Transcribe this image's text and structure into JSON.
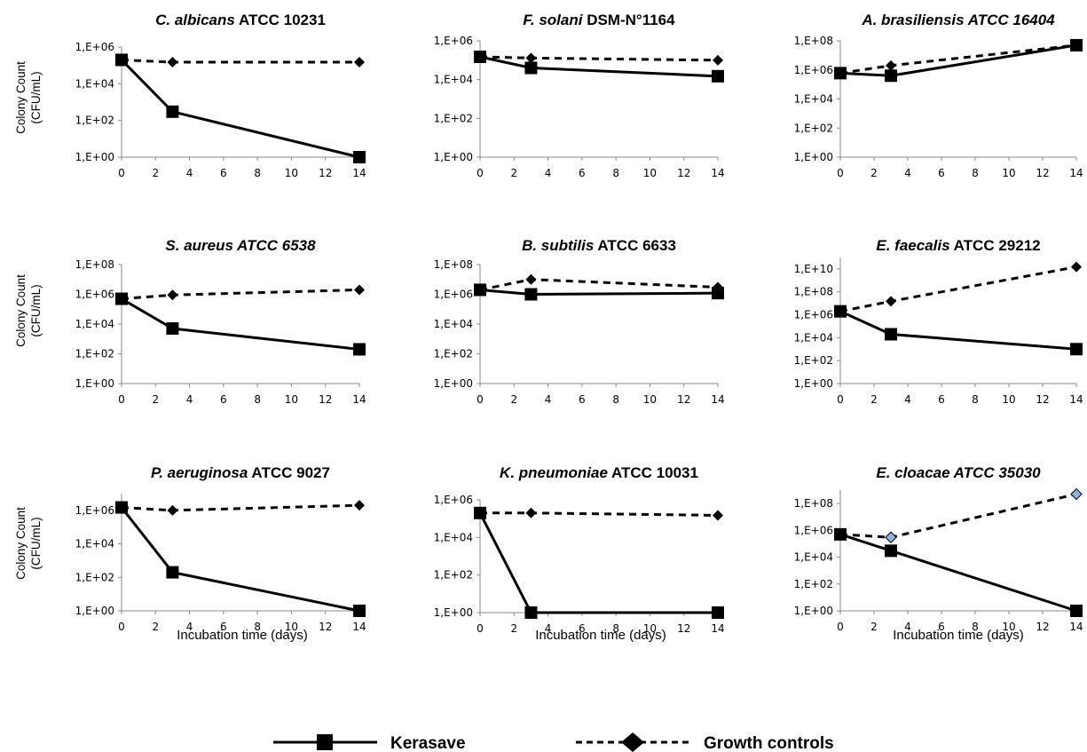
{
  "legend": {
    "kerasave_label": "Kerasave",
    "controls_label": "Growth controls"
  },
  "axis_labels": {
    "y_line1": "Colony Count",
    "y_line2": "(CFU/mL)",
    "x": "Incubation time (days)"
  },
  "colors": {
    "line": "#000000",
    "highlight_marker": "#8db3e2"
  },
  "chart_data": [
    {
      "type": "line",
      "title_species": "C. albicans",
      "title_strain": "ATCC 10231",
      "strain_italic": false,
      "x": [
        0,
        3,
        14
      ],
      "xticks": [
        "0",
        "2",
        "4",
        "6",
        "8",
        "10",
        "12",
        "14"
      ],
      "yticks": [
        "1,E+00",
        "1,E+02",
        "1,E+04",
        "1,E+06"
      ],
      "yscale": "log",
      "ylim_exp": [
        0,
        6
      ],
      "xlim": [
        0,
        14
      ],
      "series": [
        {
          "name": "Kerasave",
          "values": [
            200000,
            300,
            1
          ]
        },
        {
          "name": "Growth controls",
          "values": [
            200000,
            150000,
            150000
          ]
        }
      ]
    },
    {
      "type": "line",
      "title_species": "F. solani",
      "title_strain": "DSM-N°1164",
      "strain_italic": false,
      "x": [
        0,
        3,
        14
      ],
      "xticks": [
        "0",
        "2",
        "4",
        "6",
        "8",
        "10",
        "12",
        "14"
      ],
      "yticks": [
        "1,E+00",
        "1,E+02",
        "1,E+04",
        "1,E+06"
      ],
      "yscale": "log",
      "ylim_exp": [
        0,
        6
      ],
      "xlim": [
        0,
        14
      ],
      "series": [
        {
          "name": "Kerasave",
          "values": [
            150000,
            40000,
            15000
          ]
        },
        {
          "name": "Growth controls",
          "values": [
            150000,
            130000,
            100000
          ]
        }
      ]
    },
    {
      "type": "line",
      "title_species": "A. brasiliensis",
      "title_strain": "ATCC 16404",
      "strain_italic": true,
      "x": [
        0,
        3,
        14
      ],
      "xticks": [
        "0",
        "2",
        "4",
        "6",
        "8",
        "10",
        "12",
        "14"
      ],
      "yticks": [
        "1,E+00",
        "1,E+02",
        "1,E+04",
        "1,E+06",
        "1,E+08"
      ],
      "yscale": "log",
      "ylim_exp": [
        0,
        8
      ],
      "xlim": [
        0,
        14
      ],
      "series": [
        {
          "name": "Kerasave",
          "values": [
            600000,
            400000,
            50000000
          ]
        },
        {
          "name": "Growth controls",
          "values": [
            600000,
            2000000,
            50000000
          ]
        }
      ]
    },
    {
      "type": "line",
      "title_species": "S. aureus",
      "title_strain": "ATCC 6538",
      "strain_italic": true,
      "x": [
        0,
        3,
        14
      ],
      "xticks": [
        "0",
        "2",
        "4",
        "6",
        "8",
        "10",
        "12",
        "14"
      ],
      "yticks": [
        "1,E+00",
        "1,E+02",
        "1,E+04",
        "1,E+06",
        "1,E+08"
      ],
      "yscale": "log",
      "ylim_exp": [
        0,
        8
      ],
      "xlim": [
        0,
        14
      ],
      "series": [
        {
          "name": "Kerasave",
          "values": [
            500000,
            5000,
            200
          ]
        },
        {
          "name": "Growth controls",
          "values": [
            500000,
            900000,
            2000000
          ]
        }
      ]
    },
    {
      "type": "line",
      "title_species": "B. subtilis",
      "title_strain": "ATCC 6633",
      "strain_italic": false,
      "x": [
        0,
        3,
        14
      ],
      "xticks": [
        "0",
        "2",
        "4",
        "6",
        "8",
        "10",
        "12",
        "14"
      ],
      "yticks": [
        "1,E+00",
        "1,E+02",
        "1,E+04",
        "1,E+06",
        "1,E+08"
      ],
      "yscale": "log",
      "ylim_exp": [
        0,
        8
      ],
      "xlim": [
        0,
        14
      ],
      "series": [
        {
          "name": "Kerasave",
          "values": [
            2000000,
            1000000,
            1200000
          ]
        },
        {
          "name": "Growth controls",
          "values": [
            2000000,
            10000000,
            3000000
          ]
        }
      ]
    },
    {
      "type": "line",
      "title_species": "E. faecalis",
      "title_strain": "ATCC 29212",
      "strain_italic": false,
      "x": [
        0,
        3,
        14
      ],
      "xticks": [
        "0",
        "2",
        "4",
        "6",
        "8",
        "10",
        "12",
        "14"
      ],
      "yticks": [
        "1,E+00",
        "1,E+02",
        "1,E+04",
        "1,E+06",
        "1,E+08",
        "1,E+10"
      ],
      "yscale": "log",
      "ylim_exp": [
        0,
        11
      ],
      "xlim": [
        0,
        14
      ],
      "series": [
        {
          "name": "Kerasave",
          "values": [
            2000000,
            20000,
            1000
          ]
        },
        {
          "name": "Growth controls",
          "values": [
            2000000,
            15000000,
            15000000000
          ]
        }
      ]
    },
    {
      "type": "line",
      "title_species": "P. aeruginosa",
      "title_strain": "ATCC 9027",
      "strain_italic": false,
      "x": [
        0,
        3,
        14
      ],
      "xticks": [
        "0",
        "2",
        "4",
        "6",
        "8",
        "10",
        "12",
        "14"
      ],
      "yticks": [
        "1,E+00",
        "1,E+02",
        "1,E+04",
        "1,E+06"
      ],
      "yscale": "log",
      "ylim_exp": [
        0,
        7
      ],
      "xlim": [
        0,
        14
      ],
      "series": [
        {
          "name": "Kerasave",
          "values": [
            1500000,
            200,
            1
          ]
        },
        {
          "name": "Growth controls",
          "values": [
            1500000,
            1000000,
            2000000
          ]
        }
      ]
    },
    {
      "type": "line",
      "title_species": "K. pneumoniae",
      "title_strain": "ATCC 10031",
      "strain_italic": false,
      "x": [
        0,
        3,
        14
      ],
      "xticks": [
        "0",
        "2",
        "4",
        "6",
        "8",
        "10",
        "12",
        "14"
      ],
      "yticks": [
        "1,E+00",
        "1,E+02",
        "1,E+04",
        "1,E+06"
      ],
      "yscale": "log",
      "ylim_exp": [
        0,
        6
      ],
      "xlim": [
        0,
        14
      ],
      "series": [
        {
          "name": "Kerasave",
          "values": [
            200000,
            1,
            1
          ]
        },
        {
          "name": "Growth controls",
          "values": [
            200000,
            200000,
            150000
          ]
        }
      ]
    },
    {
      "type": "line",
      "title_species": "E. cloacae",
      "title_strain": "ATCC 35030",
      "strain_italic": true,
      "x": [
        0,
        3,
        14
      ],
      "xticks": [
        "0",
        "2",
        "4",
        "6",
        "8",
        "10",
        "12",
        "14"
      ],
      "yticks": [
        "1,E+00",
        "1,E+02",
        "1,E+04",
        "1,E+06",
        "1,E+08"
      ],
      "yscale": "log",
      "ylim_exp": [
        0,
        9
      ],
      "xlim": [
        0,
        14
      ],
      "control_marker_color": "#8db3e2",
      "series": [
        {
          "name": "Kerasave",
          "values": [
            500000,
            30000,
            1
          ]
        },
        {
          "name": "Growth controls",
          "values": [
            500000,
            300000,
            500000000
          ]
        }
      ]
    }
  ]
}
